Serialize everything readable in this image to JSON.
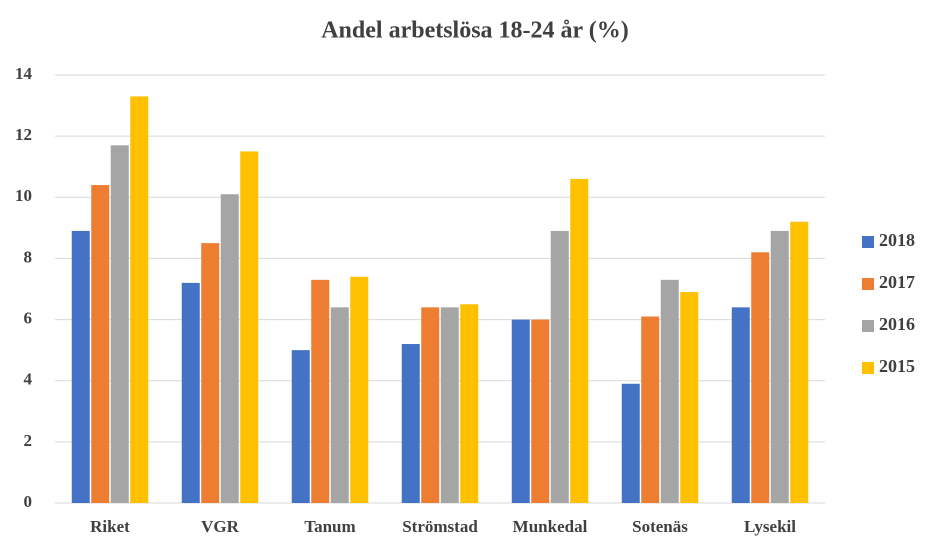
{
  "chart_data": {
    "type": "bar",
    "title": "Andel arbetslösa 18-24 år (%)",
    "categories": [
      "Riket",
      "VGR",
      "Tanum",
      "Strömstad",
      "Munkedal",
      "Sotenäs",
      "Lysekil"
    ],
    "series": [
      {
        "name": "2018",
        "color": "#4472c4",
        "values": [
          8.9,
          7.2,
          5.0,
          5.2,
          6.0,
          3.9,
          6.4
        ]
      },
      {
        "name": "2017",
        "color": "#ed7d31",
        "values": [
          10.4,
          8.5,
          7.3,
          6.4,
          6.0,
          6.1,
          8.2
        ]
      },
      {
        "name": "2016",
        "color": "#a5a5a5",
        "values": [
          11.7,
          10.1,
          6.4,
          6.4,
          8.9,
          7.3,
          8.9
        ]
      },
      {
        "name": "2015",
        "color": "#ffc000",
        "values": [
          13.3,
          11.5,
          7.4,
          6.5,
          10.6,
          6.9,
          9.2
        ]
      }
    ],
    "ylim": [
      0,
      14
    ],
    "yticks": [
      0,
      2,
      4,
      6,
      8,
      10,
      12,
      14
    ],
    "grid": true,
    "legend": "right"
  }
}
